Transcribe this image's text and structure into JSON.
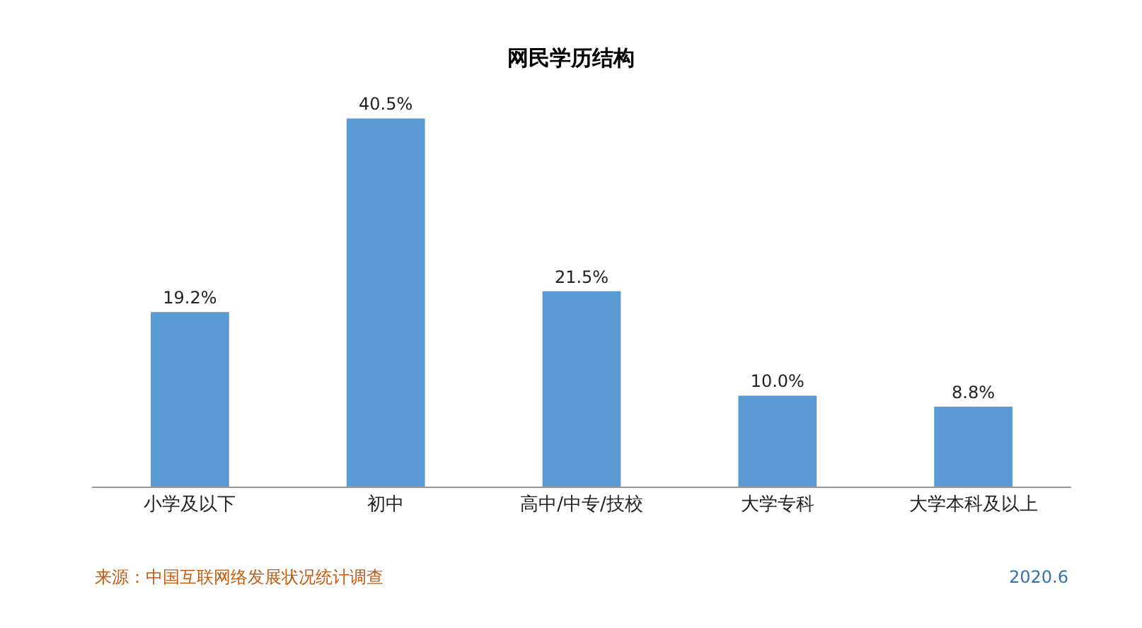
{
  "chart_data": {
    "type": "bar",
    "title": "网民学历结构",
    "categories": [
      "小学及以下",
      "初中",
      "高中/中专/技校",
      "大学专科",
      "大学本科及以上"
    ],
    "values": [
      19.2,
      40.5,
      21.5,
      10.0,
      8.8
    ],
    "value_labels": [
      "19.2%",
      "40.5%",
      "21.5%",
      "10.0%",
      "8.8%"
    ],
    "color": "#5b9bd5",
    "annotations": [
      "来源：中国互联网络发展状况统计调查",
      "2020.6"
    ],
    "grid": false,
    "legend": false
  }
}
